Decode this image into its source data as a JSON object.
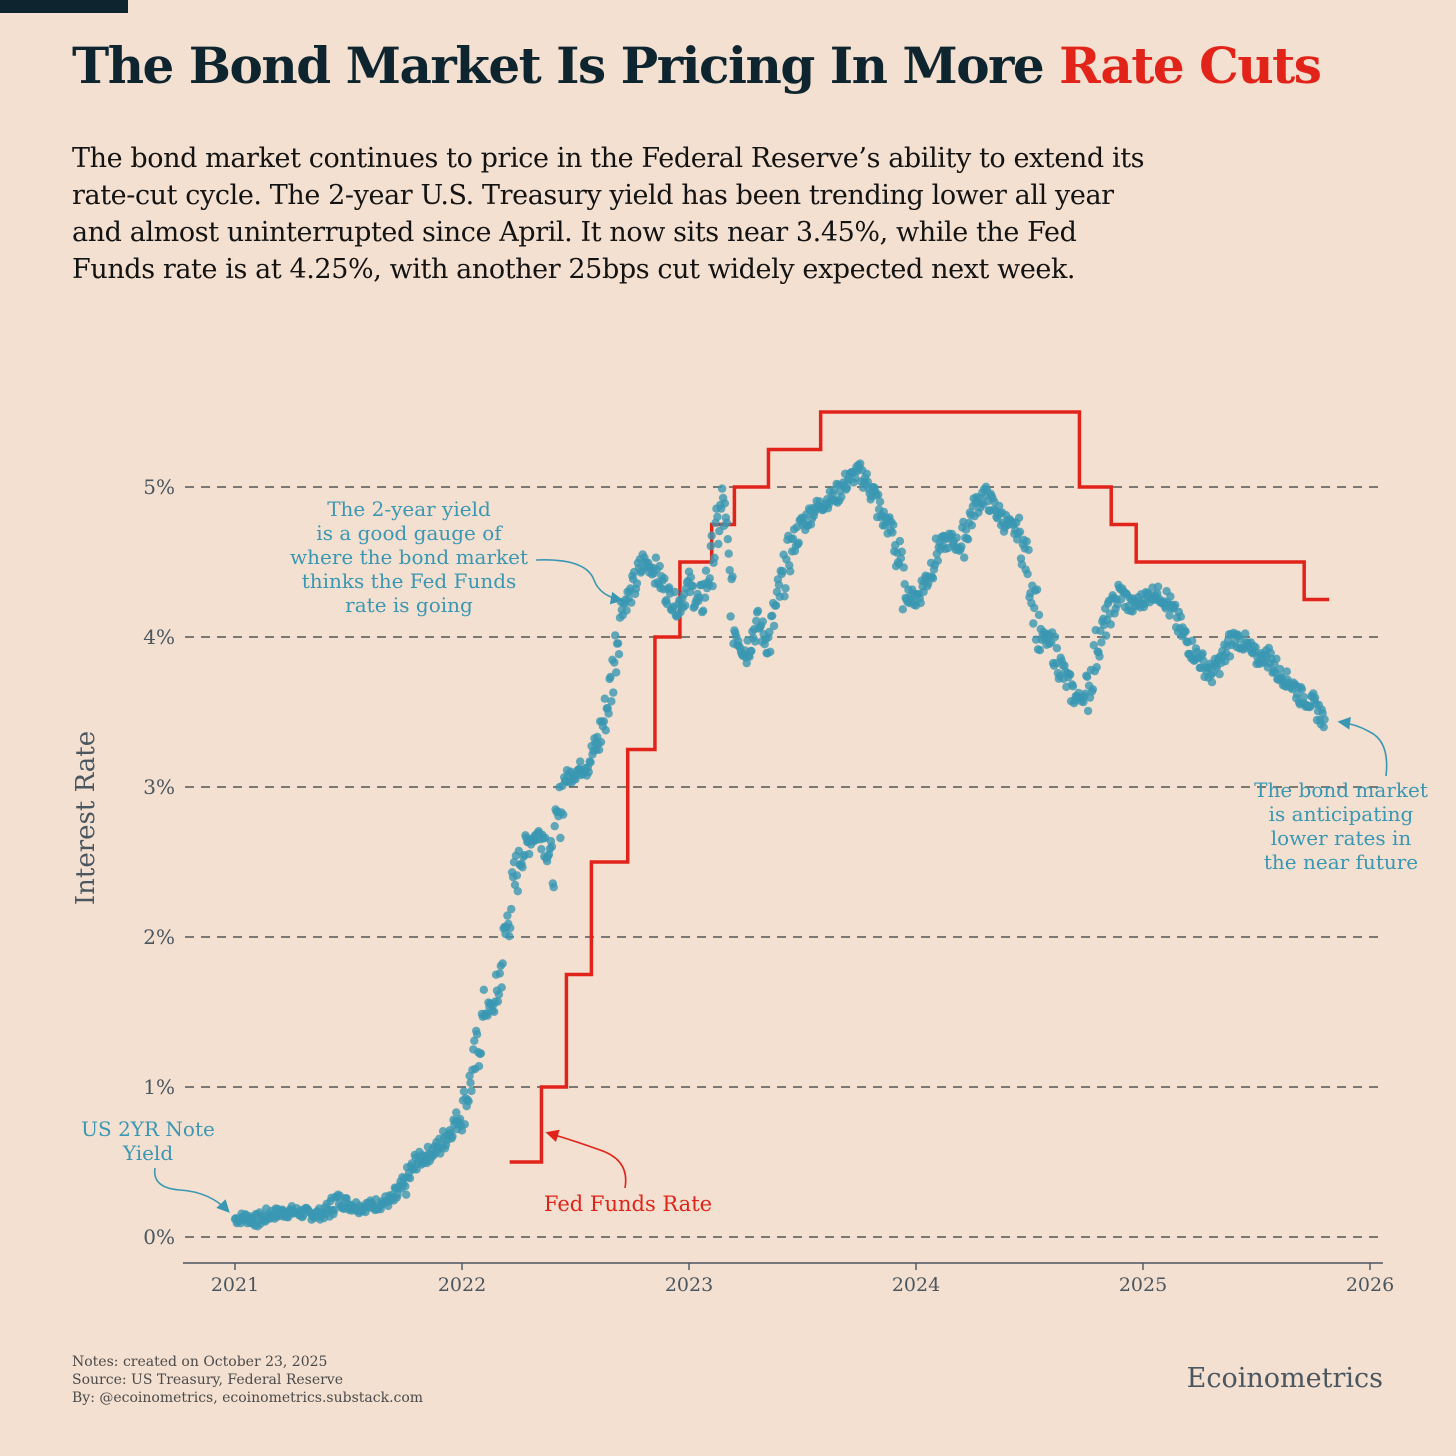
{
  "header": {
    "title_main": "The Bond Market Is Pricing In More",
    "title_accent": "Rate Cuts",
    "subtitle": "The bond market continues to price in the Federal Reserve’s ability to extend its rate-cut cycle. The 2-year U.S. Treasury yield has been trending lower all year and almost uninterrupted since April. It now sits near 3.45%, while the Fed Funds rate is at 4.25%, with another 25bps cut widely expected next week."
  },
  "footer": {
    "notes": "Notes: created on October 23, 2025",
    "source": "Source: US Treasury, Federal Reserve",
    "by": "By: @ecoinometrics, ecoinometrics.substack.com",
    "brand": "Ecoinometrics"
  },
  "colors": {
    "background": "#f3e0d0",
    "title": "#0e2530",
    "accent": "#e2231a",
    "yield": "#3a97b3",
    "fed": "#e2231a",
    "grid": "#555555",
    "axis_text": "#4a5660"
  },
  "chart_data": {
    "type": "scatter+step",
    "ylabel": "Interest Rate",
    "xlabel": "",
    "xlim": [
      2020.8,
      2026.05
    ],
    "ylim": [
      -0.15,
      5.6
    ],
    "grid": "horizontal dashed",
    "x_ticks": [
      {
        "value": 2021,
        "label": "2021"
      },
      {
        "value": 2022,
        "label": "2022"
      },
      {
        "value": 2023,
        "label": "2023"
      },
      {
        "value": 2024,
        "label": "2024"
      },
      {
        "value": 2025,
        "label": "2025"
      },
      {
        "value": 2026,
        "label": "2026"
      }
    ],
    "y_ticks": [
      {
        "value": 0,
        "label": "0%"
      },
      {
        "value": 1,
        "label": "1%"
      },
      {
        "value": 2,
        "label": "2%"
      },
      {
        "value": 3,
        "label": "3%"
      },
      {
        "value": 4,
        "label": "4%"
      },
      {
        "value": 5,
        "label": "5%"
      }
    ],
    "series": [
      {
        "name": "US 2YR Note Yield",
        "kind": "scatter",
        "x": [
          2021.0,
          2021.05,
          2021.1,
          2021.15,
          2021.2,
          2021.25,
          2021.3,
          2021.35,
          2021.4,
          2021.45,
          2021.5,
          2021.55,
          2021.6,
          2021.65,
          2021.7,
          2021.75,
          2021.8,
          2021.85,
          2021.9,
          2021.95,
          2022.0,
          2022.05,
          2022.1,
          2022.15,
          2022.2,
          2022.25,
          2022.3,
          2022.35,
          2022.4,
          2022.45,
          2022.5,
          2022.55,
          2022.6,
          2022.65,
          2022.7,
          2022.75,
          2022.8,
          2022.85,
          2022.9,
          2022.95,
          2023.0,
          2023.05,
          2023.1,
          2023.15,
          2023.2,
          2023.25,
          2023.3,
          2023.35,
          2023.4,
          2023.45,
          2023.5,
          2023.55,
          2023.6,
          2023.65,
          2023.7,
          2023.75,
          2023.8,
          2023.85,
          2023.9,
          2023.95,
          2024.0,
          2024.05,
          2024.1,
          2024.15,
          2024.2,
          2024.25,
          2024.3,
          2024.35,
          2024.4,
          2024.45,
          2024.5,
          2024.55,
          2024.6,
          2024.65,
          2024.7,
          2024.75,
          2024.8,
          2024.85,
          2024.9,
          2024.95,
          2025.0,
          2025.05,
          2025.1,
          2025.15,
          2025.2,
          2025.25,
          2025.3,
          2025.35,
          2025.4,
          2025.45,
          2025.5,
          2025.55,
          2025.6,
          2025.65,
          2025.7,
          2025.75,
          2025.8
        ],
        "y": [
          0.12,
          0.13,
          0.11,
          0.15,
          0.16,
          0.17,
          0.16,
          0.15,
          0.16,
          0.25,
          0.22,
          0.2,
          0.21,
          0.23,
          0.25,
          0.35,
          0.5,
          0.55,
          0.6,
          0.72,
          0.82,
          1.1,
          1.5,
          1.55,
          2.1,
          2.5,
          2.65,
          2.7,
          2.5,
          3.05,
          3.1,
          3.15,
          3.3,
          3.6,
          4.2,
          4.3,
          4.5,
          4.45,
          4.3,
          4.2,
          4.35,
          4.2,
          4.5,
          4.9,
          4.05,
          3.9,
          4.1,
          3.95,
          4.3,
          4.6,
          4.75,
          4.85,
          4.9,
          4.95,
          5.05,
          5.1,
          5.0,
          4.8,
          4.7,
          4.3,
          4.25,
          4.4,
          4.6,
          4.65,
          4.6,
          4.85,
          4.95,
          4.85,
          4.75,
          4.7,
          4.45,
          4.0,
          3.95,
          3.75,
          3.6,
          3.6,
          3.95,
          4.15,
          4.3,
          4.2,
          4.25,
          4.3,
          4.25,
          4.1,
          3.95,
          3.85,
          3.75,
          3.85,
          4.0,
          3.95,
          3.85,
          3.88,
          3.75,
          3.7,
          3.6,
          3.55,
          3.45
        ]
      },
      {
        "name": "Fed Funds Rate",
        "kind": "step",
        "x": [
          2022.21,
          2022.35,
          2022.46,
          2022.57,
          2022.73,
          2022.85,
          2022.96,
          2023.1,
          2023.2,
          2023.35,
          2023.58,
          2024.72,
          2024.86,
          2024.97,
          2025.71,
          2025.82
        ],
        "y": [
          0.5,
          1.0,
          1.75,
          2.5,
          3.25,
          4.0,
          4.5,
          4.75,
          5.0,
          5.25,
          5.5,
          5.0,
          4.75,
          4.5,
          4.25,
          4.25
        ]
      }
    ],
    "annotations": {
      "gauge": [
        "The 2-year yield",
        "is a good gauge of",
        "where the bond market",
        "thinks the Fed Funds",
        "rate is going"
      ],
      "anticipating": [
        "The bond market",
        "is anticipating",
        "lower rates in",
        "the near future"
      ],
      "yield_label": [
        "US 2YR Note",
        "Yield"
      ],
      "fed_label": "Fed  Funds Rate"
    }
  }
}
